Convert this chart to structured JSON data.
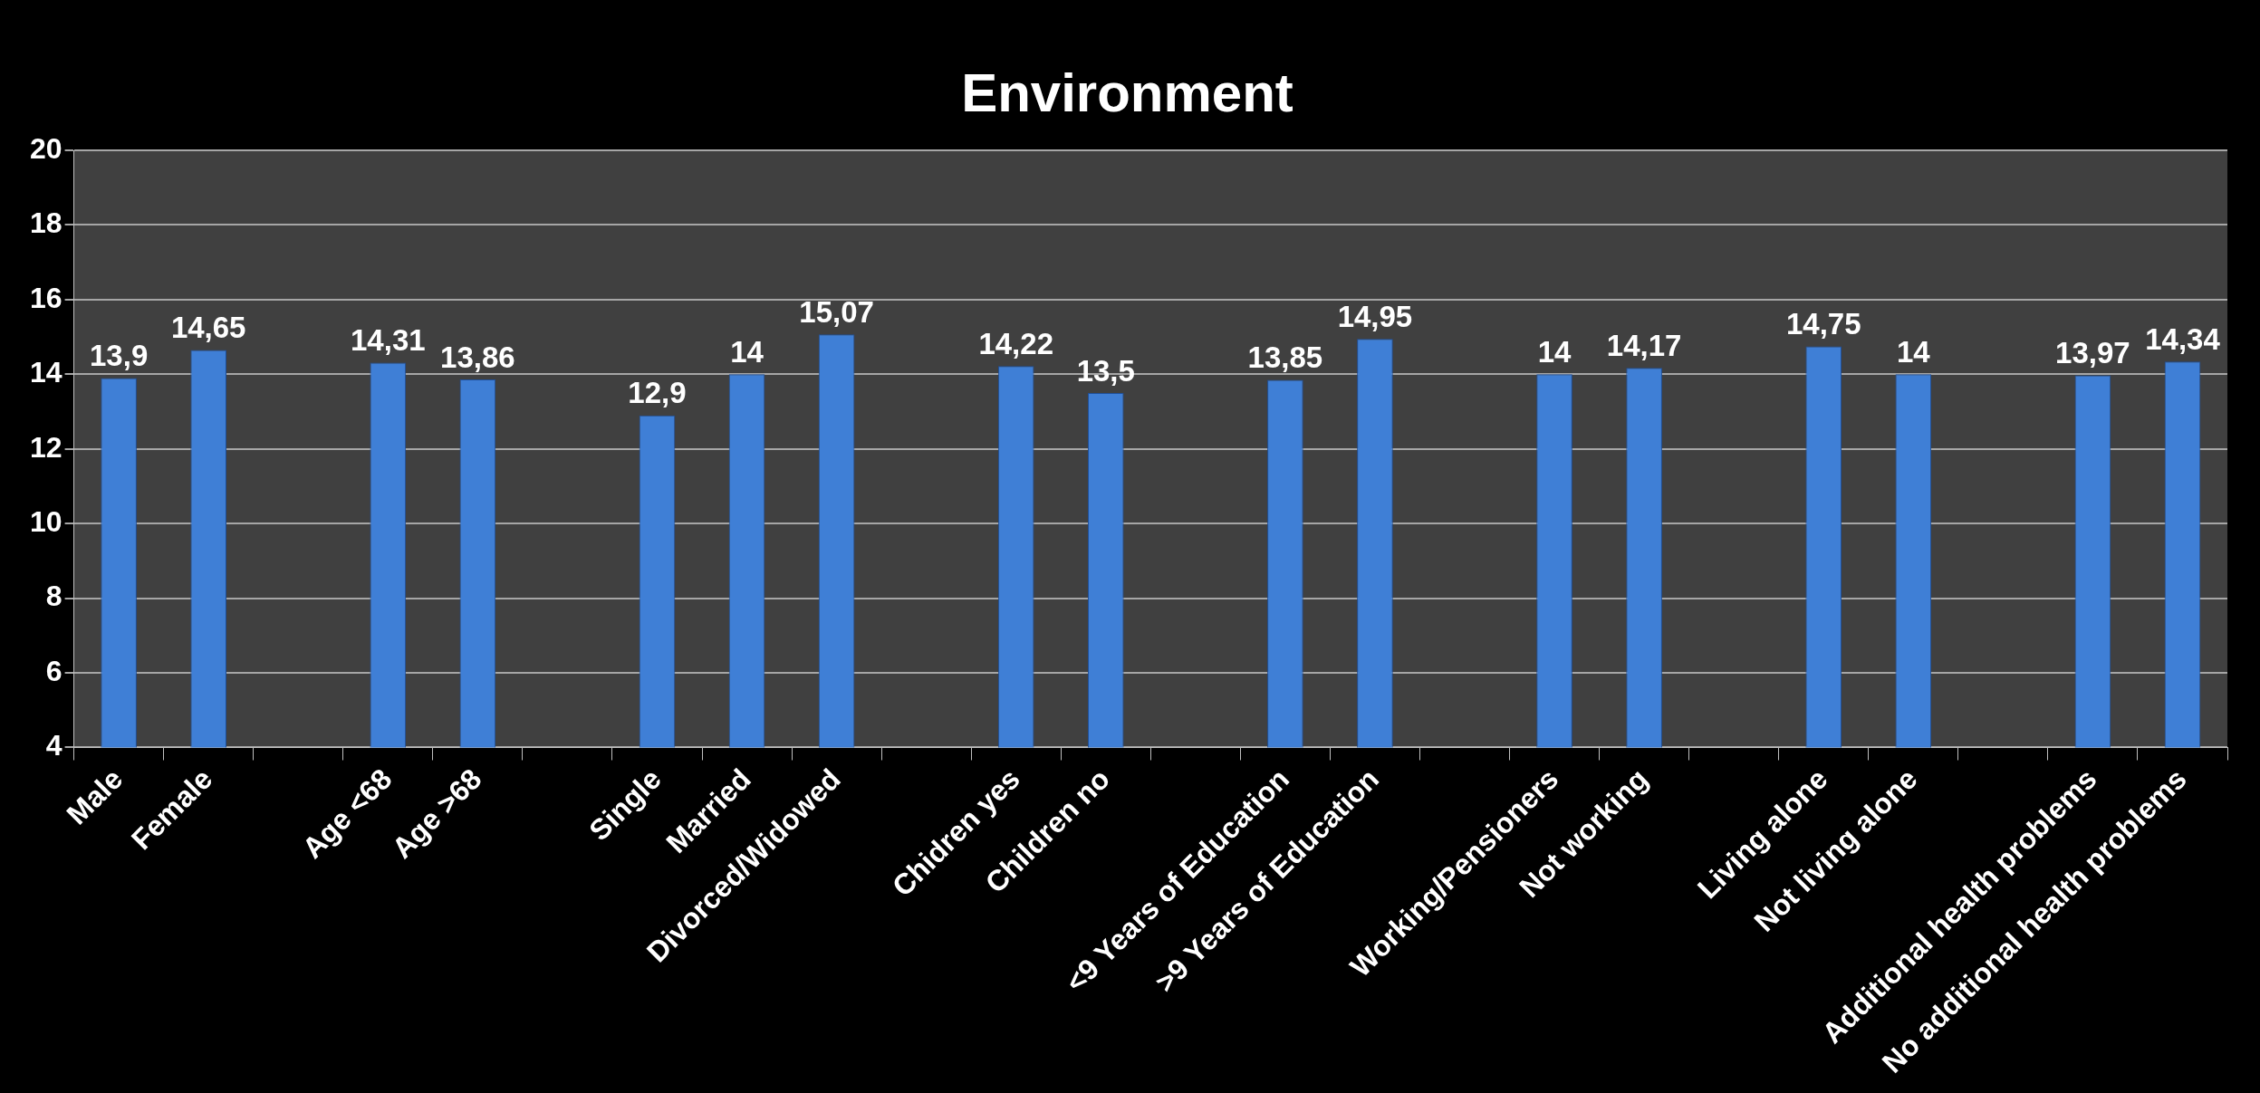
{
  "chart_data": {
    "type": "bar",
    "title": "Environment",
    "categories": [
      "Male",
      "Female",
      null,
      "Age <68",
      "Age >68",
      null,
      "Single",
      "Married",
      "Divorced/Widowed",
      null,
      "Chidren yes",
      "Children no",
      null,
      "<9 Years of Education",
      ">9 Years of Education",
      null,
      "Working/Pensioners",
      "Not working",
      null,
      "Living alone",
      "Not living alone",
      null,
      "Additional health problems",
      "No additional health problems"
    ],
    "values": [
      13.9,
      14.65,
      null,
      14.31,
      13.86,
      null,
      12.9,
      14,
      15.07,
      null,
      14.22,
      13.5,
      null,
      13.85,
      14.95,
      null,
      14,
      14.17,
      null,
      14.75,
      14,
      null,
      13.97,
      14.34
    ],
    "value_labels": [
      "13,9",
      "14,65",
      null,
      "14,31",
      "13,86",
      null,
      "12,9",
      "14",
      "15,07",
      null,
      "14,22",
      "13,5",
      null,
      "13,85",
      "14,95",
      null,
      "14",
      "14,17",
      null,
      "14,75",
      "14",
      null,
      "13,97",
      "14,34"
    ],
    "color": "#3f7fd6",
    "ylim": [
      4,
      20
    ],
    "yticks": [
      4,
      6,
      8,
      10,
      12,
      14,
      16,
      18,
      20
    ],
    "grid": "y",
    "legend": false
  }
}
